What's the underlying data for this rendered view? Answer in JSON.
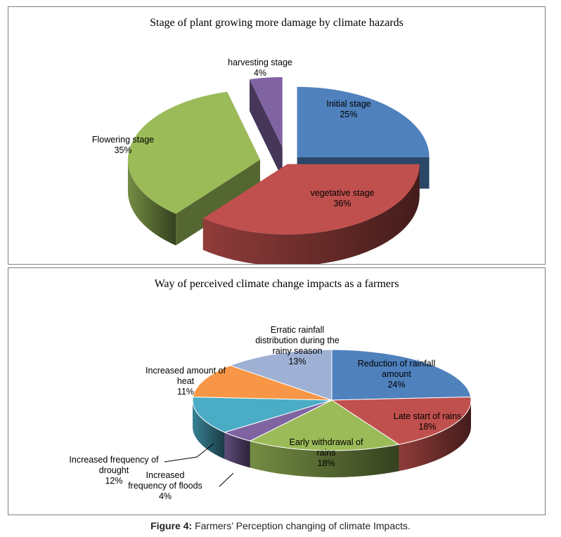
{
  "chart_data": [
    {
      "type": "pie",
      "title": "Stage of plant growing more damage by climate hazards",
      "slices": [
        {
          "label": "Initial stage",
          "value": 25,
          "value_text": "25%",
          "color": "#4f81bd",
          "label_color": "#000000"
        },
        {
          "label": "vegetative stage",
          "value": 36,
          "value_text": "36%",
          "color": "#c0504d",
          "label_color": "#000000"
        },
        {
          "label": "Flowering stage",
          "value": 35,
          "value_text": "35%",
          "color": "#9bbb59",
          "label_color": "#000000"
        },
        {
          "label": "harvesting stage",
          "value": 4,
          "value_text": "4%",
          "color": "#8064a2",
          "label_color": "#000000"
        }
      ],
      "style": "3d-exploded"
    },
    {
      "type": "pie",
      "title": "Way of perceived climate change  impacts as a farmers",
      "slices": [
        {
          "label": "Reduction of rainfall amount",
          "value": 24,
          "value_text": "24%",
          "color": "#4f81bd"
        },
        {
          "label": "Late start of rains",
          "value": 18,
          "value_text": "18%",
          "color": "#c0504d"
        },
        {
          "label": "Early withdrawal of rains",
          "value": 18,
          "value_text": "18%",
          "color": "#9bbb59"
        },
        {
          "label": "Increased frequency of floods",
          "value": 4,
          "value_text": "4%",
          "color": "#8064a2"
        },
        {
          "label": "Increased frequency of drought",
          "value": 12,
          "value_text": "12%",
          "color": "#4bacc6"
        },
        {
          "label": "Increased amount of heat",
          "value": 11,
          "value_text": "11%",
          "color": "#f79646"
        },
        {
          "label": "Erratic rainfall distribution during the rainy season",
          "value": 13,
          "value_text": "13%",
          "color": "#9eb1d4"
        }
      ],
      "style": "3d"
    }
  ],
  "caption": {
    "prefix": "Figure 4:",
    "text": " Farmers’ Perception changing of climate Impacts."
  }
}
